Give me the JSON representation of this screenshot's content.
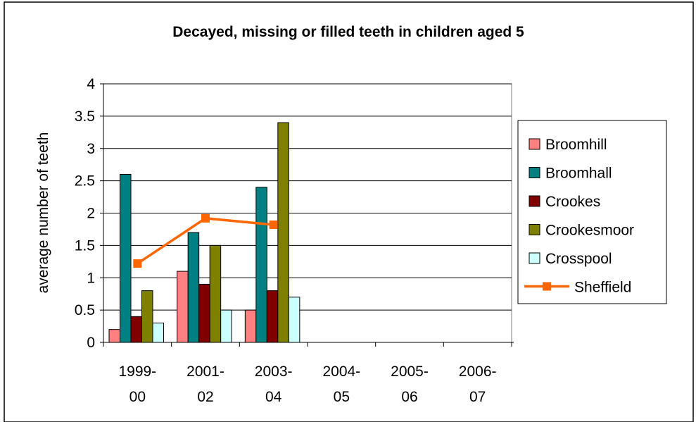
{
  "chart_data": {
    "type": "bar",
    "title": "Decayed, missing or filled teeth in children aged 5",
    "ylabel": "average number of teeth",
    "xlabel": "",
    "ylim": [
      0,
      4
    ],
    "yticks": [
      "0",
      "0.5",
      "1",
      "1.5",
      "2",
      "2.5",
      "3",
      "3.5",
      "4"
    ],
    "grid": true,
    "legend_position": "right",
    "categories": [
      [
        "1999-",
        "00"
      ],
      [
        "2001-",
        "02"
      ],
      [
        "2003-",
        "04"
      ],
      [
        "2004-",
        "05"
      ],
      [
        "2005-",
        "06"
      ],
      [
        "2006-",
        "07"
      ]
    ],
    "series": [
      {
        "name": "Broomhill",
        "type": "bar",
        "color": "#FF8080",
        "values": [
          0.2,
          1.1,
          0.5,
          null,
          null,
          null
        ]
      },
      {
        "name": "Broomhall",
        "type": "bar",
        "color": "#008080",
        "values": [
          2.6,
          1.7,
          2.4,
          null,
          null,
          null
        ]
      },
      {
        "name": "Crookes",
        "type": "bar",
        "color": "#800000",
        "values": [
          0.4,
          0.9,
          0.8,
          null,
          null,
          null
        ]
      },
      {
        "name": "Crookesmoor",
        "type": "bar",
        "color": "#808000",
        "values": [
          0.8,
          1.5,
          3.4,
          null,
          null,
          null
        ]
      },
      {
        "name": "Crosspool",
        "type": "bar",
        "color": "#CCFFFF",
        "values": [
          0.3,
          0.5,
          0.7,
          null,
          null,
          null
        ]
      },
      {
        "name": "Sheffield",
        "type": "line",
        "color": "#FF6600",
        "values": [
          1.22,
          1.92,
          1.82,
          null,
          null,
          null
        ]
      }
    ]
  }
}
